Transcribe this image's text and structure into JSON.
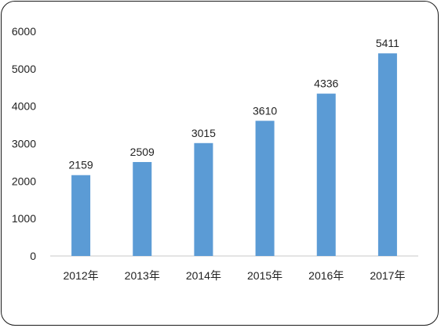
{
  "chart_data": {
    "type": "bar",
    "categories": [
      "2012年",
      "2013年",
      "2014年",
      "2015年",
      "2016年",
      "2017年"
    ],
    "values": [
      2159,
      2509,
      3015,
      3610,
      4336,
      5411
    ],
    "data_labels": [
      "2159",
      "2509",
      "3015",
      "3610",
      "4336",
      "5411"
    ],
    "title": "",
    "xlabel": "",
    "ylabel": "",
    "ylim": [
      0,
      6000
    ],
    "yticks": [
      0,
      1000,
      2000,
      3000,
      4000,
      5000,
      6000
    ],
    "ytick_labels": [
      "0",
      "1000",
      "2000",
      "3000",
      "4000",
      "5000",
      "6000"
    ],
    "grid": false,
    "legend": "none",
    "bar_color": "#5b9bd5"
  }
}
